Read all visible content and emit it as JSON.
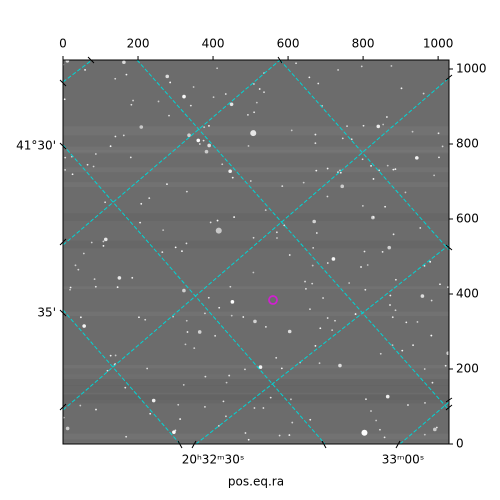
{
  "chart_data": {
    "type": "image",
    "xlabel": "pos.eq.ra",
    "xlim": [
      0,
      1029
    ],
    "ylim": [
      0,
      1024
    ],
    "xticks": [
      0,
      200,
      400,
      600,
      800,
      1000
    ],
    "yticks": [
      0,
      200,
      400,
      600,
      800,
      1000
    ],
    "dec_labels": [
      "41°30'",
      "35'"
    ],
    "ra_labels": [
      "20ʰ32ᵐ30ˢ",
      "33ᵐ00ˢ"
    ]
  }
}
